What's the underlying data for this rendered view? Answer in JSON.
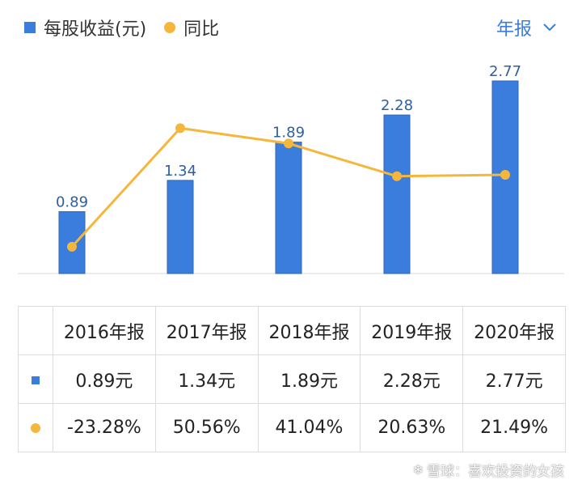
{
  "legend": {
    "bar_label": "每股收益(元)",
    "line_label": "同比"
  },
  "period_selector": {
    "label": "年报"
  },
  "colors": {
    "bar": "#3b7ddd",
    "line": "#f5b73b",
    "negative": "#1f9a6e",
    "positive": "#c0393b"
  },
  "chart_data": {
    "type": "bar",
    "categories": [
      "2016年报",
      "2017年报",
      "2018年报",
      "2019年报",
      "2020年报"
    ],
    "series": [
      {
        "name": "每股收益(元)",
        "type": "bar",
        "values": [
          0.89,
          1.34,
          1.89,
          2.28,
          2.77
        ]
      },
      {
        "name": "同比",
        "type": "line",
        "values": [
          -23.28,
          50.56,
          41.04,
          20.63,
          21.49
        ]
      }
    ],
    "bar_labels": [
      "0.89",
      "1.34",
      "1.89",
      "2.28",
      "2.77"
    ],
    "ylim_bar": [
      0,
      2.77
    ],
    "ylim_line": [
      -40,
      80
    ],
    "grid": false,
    "legend_position": "top-left"
  },
  "table": {
    "header": [
      "2016年报",
      "2017年报",
      "2018年报",
      "2019年报",
      "2020年报"
    ],
    "eps_row": [
      "0.89元",
      "1.34元",
      "1.89元",
      "2.28元",
      "2.77元"
    ],
    "yoy_row": [
      "-23.28%",
      "50.56%",
      "41.04%",
      "20.63%",
      "21.49%"
    ]
  },
  "watermark": {
    "text": "雪球：喜欢投资的女孩"
  }
}
